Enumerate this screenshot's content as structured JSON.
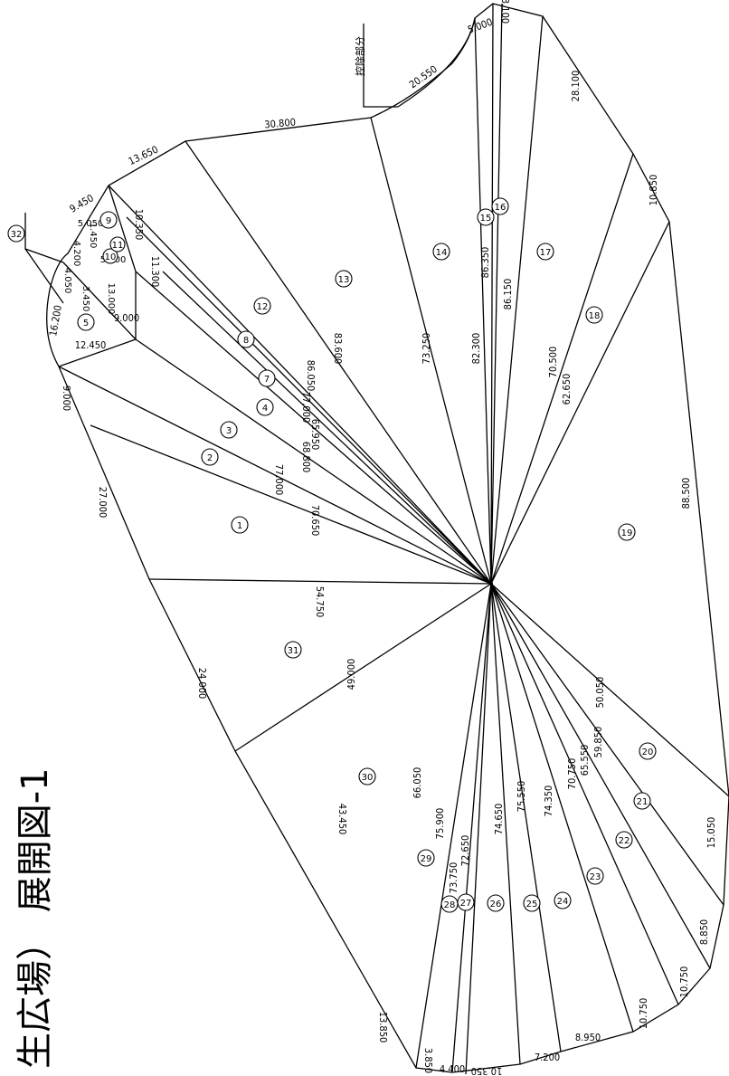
{
  "title": {
    "line": "生広場）  展開図-1"
  },
  "deduction_label": "控除部分",
  "radial_labels": [
    "70.650",
    "77.000",
    "68.800",
    "65.950",
    "77.000",
    "86.050",
    "83.600",
    "73.250",
    "82.300",
    "86.350",
    "86.150",
    "70.500",
    "62.650",
    "88.500",
    "54.750",
    "49.000",
    "66.050",
    "75.900",
    "73.750",
    "72.650",
    "74.650",
    "75.550",
    "74.350",
    "70.750",
    "65.550",
    "59.850",
    "50.050"
  ],
  "perimeter_labels": [
    "3.100",
    "28.100",
    "10.850",
    "15.050",
    "8.850",
    "10.750",
    "10.750",
    "8.950",
    "7.200",
    "10.350",
    "4.400",
    "3.850",
    "13.850",
    "43.450",
    "24.000",
    "27.000",
    "9.000",
    "12.450",
    "16.200",
    "9.000",
    "13.650",
    "30.800",
    "20.550",
    "5.000",
    "9.450",
    "11.300",
    "10.350",
    "5.600",
    "4.050",
    "3.450",
    "13.000",
    "1.450",
    "4.200",
    "5.050"
  ],
  "area_numbers": [
    "1",
    "2",
    "3",
    "4",
    "7",
    "8",
    "12",
    "13",
    "14",
    "15",
    "16",
    "17",
    "18",
    "19",
    "20",
    "21",
    "22",
    "23",
    "24",
    "25",
    "26",
    "27",
    "28",
    "29",
    "30",
    "31",
    "5",
    "9",
    "10",
    "11",
    "32"
  ]
}
